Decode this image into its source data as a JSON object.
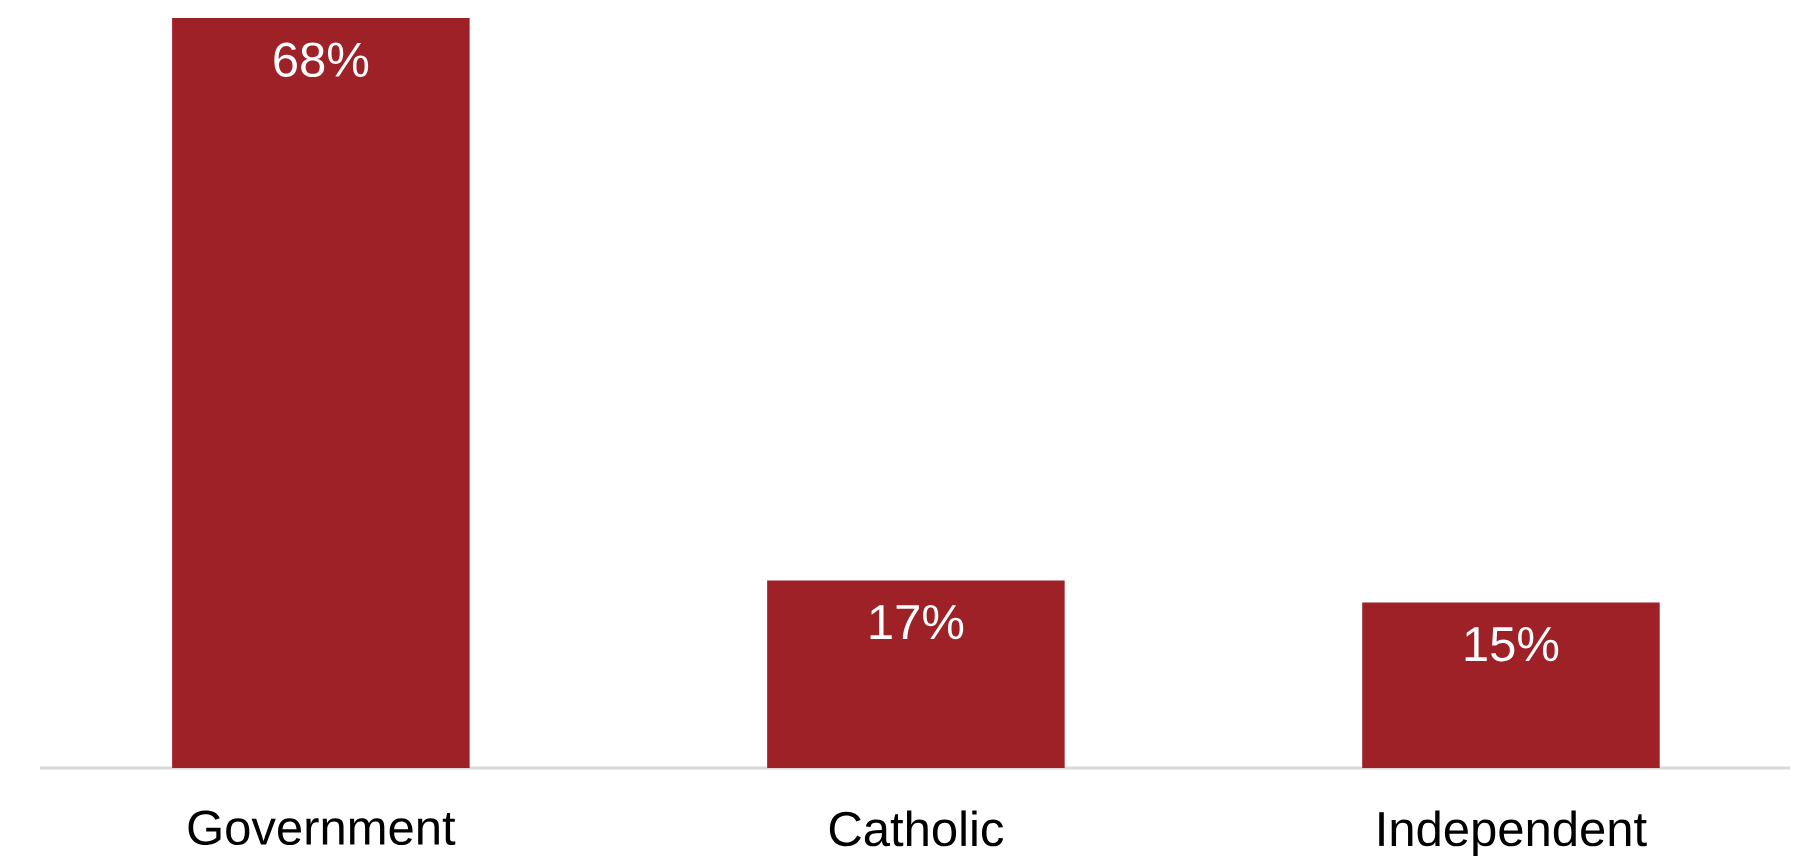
{
  "chart_data": {
    "type": "bar",
    "categories": [
      "Government",
      "Catholic",
      "Independent"
    ],
    "values": [
      68,
      17,
      15
    ],
    "color": "#9e2127",
    "value_labels": [
      "68%",
      "17%",
      "15%"
    ]
  }
}
